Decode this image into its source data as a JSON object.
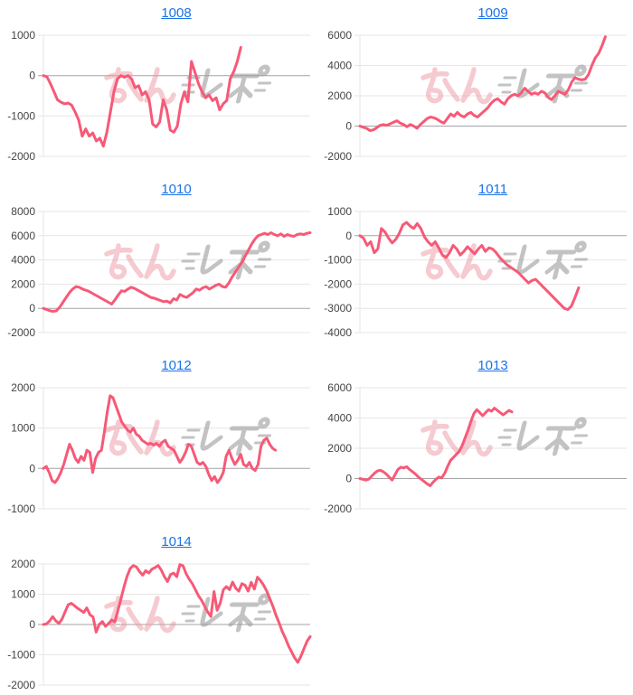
{
  "watermark": {
    "text": "みんレポ",
    "pink_text": "みん",
    "gray_text": "レポ",
    "pink_color": "#ec96a2",
    "gray_color": "#9c9c9c"
  },
  "colors": {
    "background": "#ffffff",
    "line": "#f75977",
    "grid": "#e6e6e6",
    "zero_line": "#a3a3a3",
    "axis_label": "#444444",
    "link": "#1a73e8"
  },
  "chart_data": [
    {
      "type": "line",
      "title": "1008",
      "xlabel": "",
      "ylabel": "",
      "legend": false,
      "grid": true,
      "ylim": [
        -2000,
        1000
      ],
      "yticks": [
        1000,
        0,
        -1000,
        -2000
      ],
      "x_fraction": 0.74,
      "values": [
        0,
        -30,
        -200,
        -400,
        -600,
        -660,
        -700,
        -680,
        -730,
        -900,
        -1100,
        -1500,
        -1320,
        -1500,
        -1420,
        -1620,
        -1550,
        -1750,
        -1400,
        -900,
        -400,
        -80,
        0,
        -40,
        0,
        -80,
        -300,
        -250,
        -480,
        -400,
        -600,
        -1200,
        -1270,
        -1150,
        -600,
        -850,
        -1350,
        -1400,
        -1250,
        -700,
        -400,
        -650,
        350,
        80,
        -200,
        -400,
        -550,
        -480,
        -620,
        -550,
        -850,
        -700,
        -620,
        -80,
        100,
        350,
        700
      ]
    },
    {
      "type": "line",
      "title": "1009",
      "xlabel": "",
      "ylabel": "",
      "legend": false,
      "grid": true,
      "ylim": [
        -2000,
        6000
      ],
      "yticks": [
        6000,
        4000,
        2000,
        0,
        -2000
      ],
      "x_fraction": 0.92,
      "values": [
        0,
        -80,
        -150,
        -300,
        -250,
        -100,
        50,
        100,
        50,
        150,
        250,
        350,
        200,
        100,
        -50,
        100,
        0,
        -150,
        100,
        300,
        500,
        600,
        550,
        450,
        300,
        200,
        500,
        800,
        650,
        900,
        700,
        600,
        800,
        900,
        700,
        600,
        800,
        1000,
        1200,
        1500,
        1700,
        1800,
        1600,
        1450,
        1800,
        2000,
        2100,
        2000,
        2200,
        2500,
        2300,
        2100,
        2200,
        2100,
        2300,
        2200,
        1900,
        1750,
        2000,
        2300,
        2200,
        2100,
        2400,
        2900,
        3200,
        3100,
        3050,
        3100,
        3400,
        4000,
        4500,
        4800,
        5300,
        5900
      ]
    },
    {
      "type": "line",
      "title": "1010",
      "xlabel": "",
      "ylabel": "",
      "legend": false,
      "grid": true,
      "ylim": [
        -2000,
        8000
      ],
      "yticks": [
        8000,
        6000,
        4000,
        2000,
        0,
        -2000
      ],
      "x_fraction": 1.0,
      "values": [
        0,
        -100,
        -200,
        -250,
        -200,
        100,
        500,
        900,
        1300,
        1600,
        1800,
        1750,
        1600,
        1500,
        1400,
        1250,
        1100,
        950,
        800,
        650,
        500,
        350,
        700,
        1100,
        1450,
        1400,
        1600,
        1750,
        1650,
        1500,
        1350,
        1200,
        1050,
        900,
        850,
        750,
        650,
        550,
        600,
        450,
        800,
        700,
        1150,
        1000,
        900,
        1100,
        1300,
        1600,
        1500,
        1700,
        1800,
        1600,
        1750,
        1900,
        2000,
        1800,
        1750,
        2100,
        2600,
        3000,
        3400,
        3800,
        4300,
        4800,
        5300,
        5700,
        6000,
        6100,
        6200,
        6100,
        6250,
        6100,
        6000,
        6150,
        5950,
        6100,
        6000,
        5950,
        6100,
        6150,
        6100,
        6200,
        6250
      ]
    },
    {
      "type": "line",
      "title": "1011",
      "xlabel": "",
      "ylabel": "",
      "legend": false,
      "grid": true,
      "ylim": [
        -4000,
        1000
      ],
      "yticks": [
        1000,
        0,
        -1000,
        -2000,
        -3000,
        -4000
      ],
      "x_fraction": 0.82,
      "values": [
        0,
        -100,
        -400,
        -250,
        -700,
        -550,
        300,
        150,
        -100,
        -300,
        -150,
        100,
        450,
        550,
        400,
        300,
        500,
        300,
        -50,
        -250,
        -400,
        -250,
        -500,
        -800,
        -900,
        -700,
        -400,
        -550,
        -800,
        -650,
        -450,
        -600,
        -750,
        -550,
        -400,
        -650,
        -500,
        -550,
        -700,
        -900,
        -1050,
        -1200,
        -1300,
        -1400,
        -1500,
        -1650,
        -1800,
        -1950,
        -1850,
        -1800,
        -1950,
        -2100,
        -2250,
        -2400,
        -2550,
        -2700,
        -2850,
        -3000,
        -3050,
        -2900,
        -2550,
        -2150
      ]
    },
    {
      "type": "line",
      "title": "1012",
      "xlabel": "",
      "ylabel": "",
      "legend": false,
      "grid": true,
      "ylim": [
        -1000,
        2000
      ],
      "yticks": [
        2000,
        1000,
        0,
        -1000
      ],
      "x_fraction": 0.87,
      "values": [
        0,
        50,
        -100,
        -300,
        -350,
        -250,
        -100,
        100,
        350,
        600,
        450,
        250,
        150,
        300,
        200,
        450,
        400,
        -100,
        250,
        400,
        450,
        900,
        1400,
        1800,
        1750,
        1550,
        1350,
        1150,
        1050,
        950,
        900,
        1000,
        850,
        800,
        700,
        650,
        600,
        620,
        580,
        620,
        550,
        650,
        700,
        550,
        500,
        450,
        300,
        150,
        250,
        400,
        600,
        550,
        350,
        150,
        100,
        150,
        50,
        -150,
        -300,
        -200,
        -350,
        -250,
        -100,
        300,
        450,
        250,
        100,
        200,
        350,
        100,
        50,
        150,
        0,
        -50,
        100,
        550,
        700,
        750,
        600,
        500,
        450
      ]
    },
    {
      "type": "line",
      "title": "1013",
      "xlabel": "",
      "ylabel": "",
      "legend": false,
      "grid": true,
      "ylim": [
        -2000,
        6000
      ],
      "yticks": [
        6000,
        4000,
        2000,
        0,
        -2000
      ],
      "x_fraction": 0.57,
      "values": [
        0,
        -50,
        -100,
        -50,
        150,
        350,
        500,
        550,
        450,
        300,
        100,
        -100,
        250,
        600,
        750,
        700,
        780,
        600,
        450,
        300,
        100,
        -50,
        -200,
        -350,
        -480,
        -250,
        -50,
        100,
        50,
        350,
        800,
        1200,
        1400,
        1600,
        1800,
        2200,
        2700,
        3200,
        3800,
        4300,
        4550,
        4350,
        4150,
        4350,
        4550,
        4450,
        4650,
        4500,
        4350,
        4200,
        4350,
        4500,
        4400
      ]
    },
    {
      "type": "line",
      "title": "1014",
      "xlabel": "",
      "ylabel": "",
      "legend": false,
      "grid": true,
      "ylim": [
        -2000,
        2000
      ],
      "yticks": [
        2000,
        1000,
        0,
        -1000,
        -2000
      ],
      "x_fraction": 1.0,
      "values": [
        0,
        20,
        120,
        260,
        120,
        40,
        180,
        420,
        650,
        700,
        620,
        540,
        470,
        400,
        550,
        320,
        250,
        -250,
        0,
        100,
        -60,
        30,
        150,
        80,
        450,
        850,
        1250,
        1600,
        1850,
        1950,
        1900,
        1750,
        1630,
        1780,
        1700,
        1830,
        1880,
        1950,
        1800,
        1580,
        1420,
        1650,
        1700,
        1580,
        1980,
        1940,
        1680,
        1500,
        1350,
        1150,
        950,
        800,
        600,
        410,
        265,
        1090,
        470,
        700,
        1150,
        1250,
        1150,
        1400,
        1200,
        1100,
        1350,
        1300,
        1100,
        1390,
        1170,
        1560,
        1450,
        1300,
        1100,
        850,
        600,
        300,
        50,
        -230,
        -450,
        -700,
        -900,
        -1100,
        -1250,
        -1050,
        -800,
        -550,
        -400
      ]
    }
  ]
}
